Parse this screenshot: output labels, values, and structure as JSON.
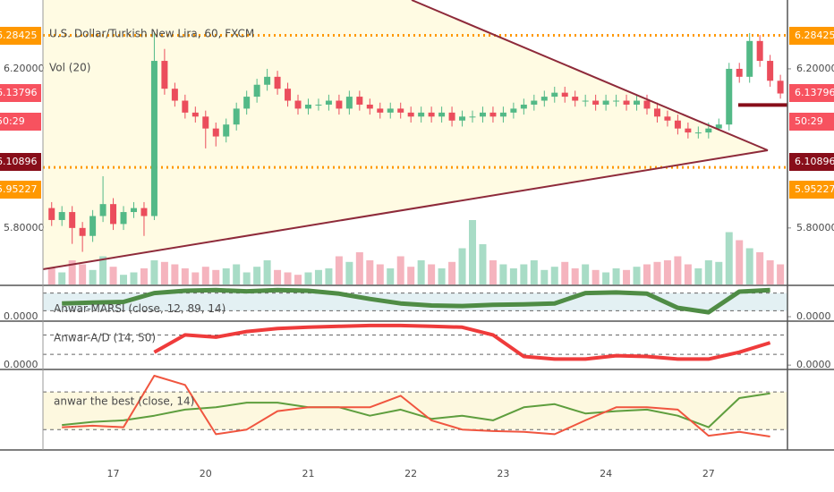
{
  "chart_data": [
    {
      "type": "candlestick",
      "title": "U.S. Dollar/Turkish New Lira, 60, FXCM",
      "volume_title": "Vol (20)",
      "categories": [
        null,
        null,
        null,
        null,
        null,
        null,
        "17",
        null,
        null,
        null,
        null,
        null,
        null,
        null,
        null,
        "20",
        null,
        null,
        null,
        null,
        null,
        null,
        null,
        null,
        null,
        "21",
        null,
        null,
        null,
        null,
        null,
        null,
        null,
        null,
        null,
        "22",
        null,
        null,
        null,
        null,
        null,
        null,
        null,
        null,
        "23",
        null,
        null,
        null,
        null,
        null,
        null,
        null,
        null,
        null,
        "24",
        null,
        null,
        null,
        null,
        null,
        null,
        null,
        null,
        null,
        "27",
        null,
        null,
        null,
        null,
        null,
        null,
        null
      ],
      "open": [
        5.85,
        5.82,
        5.84,
        5.8,
        5.78,
        5.83,
        5.86,
        5.81,
        5.84,
        5.85,
        5.83,
        6.22,
        6.15,
        6.12,
        6.09,
        6.08,
        6.05,
        6.03,
        6.06,
        6.1,
        6.13,
        6.16,
        6.18,
        6.15,
        6.12,
        6.1,
        6.11,
        6.11,
        6.12,
        6.1,
        6.13,
        6.11,
        6.1,
        6.09,
        6.1,
        6.09,
        6.08,
        6.09,
        6.08,
        6.09,
        6.07,
        6.08,
        6.08,
        6.09,
        6.08,
        6.09,
        6.1,
        6.11,
        6.12,
        6.13,
        6.14,
        6.13,
        6.12,
        6.12,
        6.11,
        6.12,
        6.12,
        6.11,
        6.12,
        6.1,
        6.08,
        6.07,
        6.05,
        6.04,
        6.04,
        6.05,
        6.06,
        6.2,
        6.18,
        6.27,
        6.22,
        6.17
      ],
      "high": [
        5.865,
        5.855,
        5.855,
        5.815,
        5.845,
        5.93,
        5.875,
        5.855,
        5.865,
        5.865,
        6.29,
        6.25,
        6.165,
        6.135,
        6.105,
        6.095,
        6.065,
        6.075,
        6.115,
        6.145,
        6.175,
        6.2,
        6.195,
        6.165,
        6.135,
        6.125,
        6.125,
        6.135,
        6.135,
        6.145,
        6.145,
        6.125,
        6.115,
        6.115,
        6.115,
        6.105,
        6.105,
        6.105,
        6.105,
        6.105,
        6.095,
        6.095,
        6.105,
        6.105,
        6.105,
        6.115,
        6.125,
        6.135,
        6.145,
        6.155,
        6.155,
        6.145,
        6.135,
        6.135,
        6.135,
        6.135,
        6.135,
        6.135,
        6.135,
        6.115,
        6.095,
        6.085,
        6.065,
        6.055,
        6.065,
        6.075,
        6.215,
        6.215,
        6.29,
        6.285,
        6.235,
        6.185
      ],
      "low": [
        5.805,
        5.805,
        5.76,
        5.74,
        5.765,
        5.815,
        5.795,
        5.795,
        5.825,
        5.78,
        5.82,
        6.135,
        6.105,
        6.075,
        6.065,
        6.0,
        6.005,
        6.015,
        6.045,
        6.085,
        6.115,
        6.145,
        6.135,
        6.105,
        6.085,
        6.085,
        6.095,
        6.095,
        6.085,
        6.085,
        6.095,
        6.085,
        6.075,
        6.075,
        6.075,
        6.065,
        6.065,
        6.065,
        6.065,
        6.055,
        6.055,
        6.065,
        6.065,
        6.065,
        6.065,
        6.075,
        6.085,
        6.095,
        6.105,
        6.115,
        6.115,
        6.105,
        6.105,
        6.095,
        6.095,
        6.105,
        6.095,
        6.095,
        6.085,
        6.065,
        6.055,
        6.035,
        6.025,
        6.025,
        6.025,
        6.045,
        6.045,
        6.165,
        6.165,
        6.205,
        6.155,
        6.125
      ],
      "close": [
        5.82,
        5.84,
        5.8,
        5.78,
        5.83,
        5.86,
        5.81,
        5.84,
        5.85,
        5.83,
        6.22,
        6.15,
        6.12,
        6.09,
        6.08,
        6.05,
        6.03,
        6.06,
        6.1,
        6.13,
        6.16,
        6.18,
        6.15,
        6.12,
        6.1,
        6.11,
        6.11,
        6.12,
        6.1,
        6.13,
        6.11,
        6.1,
        6.09,
        6.1,
        6.09,
        6.08,
        6.09,
        6.08,
        6.09,
        6.07,
        6.08,
        6.08,
        6.09,
        6.08,
        6.09,
        6.1,
        6.11,
        6.12,
        6.13,
        6.14,
        6.13,
        6.12,
        6.12,
        6.11,
        6.12,
        6.12,
        6.11,
        6.12,
        6.1,
        6.08,
        6.07,
        6.05,
        6.04,
        6.04,
        6.05,
        6.06,
        6.2,
        6.18,
        6.27,
        6.22,
        6.17,
        6.138
      ],
      "volume": [
        20,
        15,
        30,
        25,
        18,
        35,
        22,
        12,
        15,
        20,
        30,
        28,
        25,
        20,
        15,
        22,
        18,
        20,
        25,
        15,
        22,
        30,
        18,
        15,
        12,
        15,
        18,
        20,
        35,
        28,
        40,
        30,
        25,
        20,
        35,
        22,
        30,
        25,
        20,
        28,
        45,
        80,
        50,
        30,
        25,
        20,
        25,
        30,
        18,
        22,
        28,
        20,
        25,
        18,
        15,
        20,
        18,
        22,
        25,
        28,
        30,
        35,
        25,
        20,
        30,
        28,
        65,
        55,
        45,
        40,
        30,
        25
      ],
      "up_color": "#53b987",
      "down_color": "#eb4d5c",
      "vol_up_color": "#a8dcc6",
      "vol_down_color": "#f5b4be",
      "ylim": [
        5.658,
        6.373
      ],
      "yticks": [
        {
          "value": 6.2,
          "label": "6.20000"
        },
        {
          "value": 5.8,
          "label": "5.80000"
        }
      ],
      "price_labels": [
        {
          "value": 6.28425,
          "color": "#ff9800",
          "line": "dotted"
        },
        {
          "value": 6.13796,
          "color": "#f7525f"
        },
        {
          "text": "50:29",
          "color": "#f7525f"
        },
        {
          "value": 6.10896,
          "color": "#880e1a",
          "line": "segment"
        },
        {
          "value": 5.95227,
          "color": "#ff9800",
          "line": "dotted"
        }
      ]
    },
    {
      "type": "line",
      "title": "Anwar-MARSI (close, 12, 89, 14)",
      "ylim": [
        -12,
        100
      ],
      "yticks": [
        {
          "value": 0,
          "label": "0.0000"
        }
      ],
      "levels": [
        20,
        80
      ],
      "band_color": "#e3f0f3",
      "series": [
        {
          "color": "#4f8c45",
          "width": 5,
          "values": [
            45,
            48,
            50,
            80,
            88,
            90,
            86,
            90,
            88,
            78,
            60,
            45,
            38,
            36,
            40,
            42,
            45,
            80,
            82,
            78,
            30,
            15,
            85,
            90
          ]
        }
      ]
    },
    {
      "type": "line",
      "title": "Anwar-A/D (14, 50)",
      "ylim": [
        -8,
        100
      ],
      "yticks": [
        {
          "value": 0,
          "label": "0.0000"
        }
      ],
      "levels": [
        25,
        70
      ],
      "band_color": "#ffffff",
      "series": [
        {
          "color": "#ef3b3b",
          "width": 4,
          "values": [
            null,
            null,
            null,
            30,
            70,
            65,
            78,
            85,
            88,
            90,
            92,
            92,
            90,
            88,
            70,
            20,
            14,
            14,
            22,
            20,
            14,
            14,
            30,
            52
          ]
        }
      ]
    },
    {
      "type": "line",
      "title": "anwar the best (close, 14)",
      "ylim": [
        0,
        100
      ],
      "yticks": [],
      "levels": [
        23,
        72
      ],
      "band_color": "#fdf8df",
      "series": [
        {
          "color": "#5e9e3e",
          "width": 2,
          "values": [
            29,
            33,
            35,
            41,
            49,
            52,
            58,
            58,
            52,
            52,
            41,
            49,
            37,
            41,
            35,
            52,
            56,
            44,
            47,
            49,
            41,
            26,
            64,
            70
          ]
        },
        {
          "color": "#f0553f",
          "width": 2,
          "values": [
            26,
            28,
            26,
            93,
            81,
            17,
            23,
            47,
            52,
            52,
            52,
            67,
            35,
            23,
            21,
            20,
            17,
            35,
            52,
            52,
            49,
            15,
            20,
            14
          ]
        }
      ]
    }
  ]
}
